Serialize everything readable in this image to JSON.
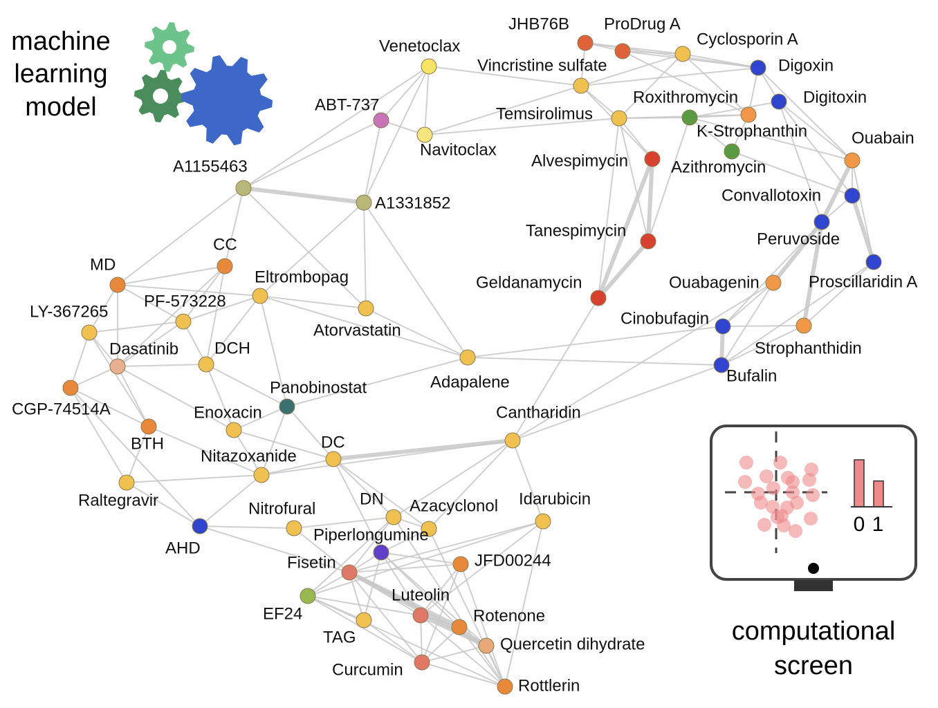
{
  "captions": {
    "ml_model": [
      "machine",
      "learning",
      "model"
    ],
    "screen": [
      "computational",
      "screen"
    ]
  },
  "screen_icon": {
    "bar_labels": [
      "0",
      "1"
    ],
    "bar_values": [
      1.0,
      0.55
    ],
    "color": "#ef8a8a"
  },
  "gear_colors": [
    "#6cc48a",
    "#4a8c5c",
    "#3d68c8"
  ],
  "edge_color": "#c8c8c8",
  "nodes": [
    {
      "name": "Venetoclax",
      "color": "#f7e463"
    },
    {
      "name": "ABT-737",
      "color": "#c974b8"
    },
    {
      "name": "Navitoclax",
      "color": "#f6e47e"
    },
    {
      "name": "A1155463",
      "color": "#b8b878"
    },
    {
      "name": "A1331852",
      "color": "#b8b878"
    },
    {
      "name": "JHB76B",
      "color": "#e0623a"
    },
    {
      "name": "ProDrug A",
      "color": "#e0623a"
    },
    {
      "name": "Cyclosporin A",
      "color": "#f0c050"
    },
    {
      "name": "Digoxin",
      "color": "#2f45d0"
    },
    {
      "name": "Vincristine sulfate",
      "color": "#f0c050"
    },
    {
      "name": "Roxithromycin",
      "color": "#f09848"
    },
    {
      "name": "Digitoxin",
      "color": "#2f45d0"
    },
    {
      "name": "Temsirolimus",
      "color": "#f0c050"
    },
    {
      "name": "K-Strophanthin",
      "color": "#5a9a40"
    },
    {
      "name": "Azithromycin",
      "color": "#5a9a40"
    },
    {
      "name": "Ouabain",
      "color": "#f09848"
    },
    {
      "name": "Alvespimycin",
      "color": "#d84030"
    },
    {
      "name": "Convallotoxin",
      "color": "#2f45d0"
    },
    {
      "name": "Peruvoside",
      "color": "#2f45d0"
    },
    {
      "name": "Tanespimycin",
      "color": "#d84030"
    },
    {
      "name": "Proscillaridin A",
      "color": "#2f45d0"
    },
    {
      "name": "Ouabagenin",
      "color": "#f09848"
    },
    {
      "name": "Geldanamycin",
      "color": "#d84030"
    },
    {
      "name": "Cinobufagin",
      "color": "#2f45d0"
    },
    {
      "name": "Strophanthidin",
      "color": "#f09848"
    },
    {
      "name": "Bufalin",
      "color": "#2f45d0"
    },
    {
      "name": "MD",
      "color": "#e8883a"
    },
    {
      "name": "CC",
      "color": "#e8883a"
    },
    {
      "name": "Eltrombopag",
      "color": "#f0c050"
    },
    {
      "name": "Atorvastatin",
      "color": "#f0c050"
    },
    {
      "name": "LY-367265",
      "color": "#f0c050"
    },
    {
      "name": "PF-573228",
      "color": "#f0c050"
    },
    {
      "name": "Dasatinib",
      "color": "#e8b090"
    },
    {
      "name": "DCH",
      "color": "#f0c050"
    },
    {
      "name": "Adapalene",
      "color": "#f0c050"
    },
    {
      "name": "CGP-74514A",
      "color": "#e8883a"
    },
    {
      "name": "Panobinostat",
      "color": "#3a7070"
    },
    {
      "name": "Enoxacin",
      "color": "#f0c050"
    },
    {
      "name": "BTH",
      "color": "#e8883a"
    },
    {
      "name": "Cantharidin",
      "color": "#f0c050"
    },
    {
      "name": "DC",
      "color": "#f0c050"
    },
    {
      "name": "Nitazoxanide",
      "color": "#f0c050"
    },
    {
      "name": "Raltegravir",
      "color": "#f0c050"
    },
    {
      "name": "AHD",
      "color": "#2f45d0"
    },
    {
      "name": "Nitrofural",
      "color": "#f0c050"
    },
    {
      "name": "DN",
      "color": "#f0c050"
    },
    {
      "name": "Azacyclonol",
      "color": "#f0c050"
    },
    {
      "name": "Idarubicin",
      "color": "#f0c050"
    },
    {
      "name": "Piperlongumine",
      "color": "#6040c8"
    },
    {
      "name": "Fisetin",
      "color": "#e07868"
    },
    {
      "name": "JFD00244",
      "color": "#e8883a"
    },
    {
      "name": "EF24",
      "color": "#98b850"
    },
    {
      "name": "Luteolin",
      "color": "#e07868"
    },
    {
      "name": "TAG",
      "color": "#f0c050"
    },
    {
      "name": "Rotenone",
      "color": "#e8883a"
    },
    {
      "name": "Quercetin dihydrate",
      "color": "#e8a878"
    },
    {
      "name": "Curcumin",
      "color": "#e07868"
    },
    {
      "name": "Rottlerin",
      "color": "#e8883a"
    }
  ],
  "edges": [
    [
      "Venetoclax",
      "ABT-737"
    ],
    [
      "Venetoclax",
      "Navitoclax"
    ],
    [
      "ABT-737",
      "Navitoclax"
    ],
    [
      "Venetoclax",
      "Vincristine sulfate"
    ],
    [
      "Venetoclax",
      "A1331852"
    ],
    [
      "Venetoclax",
      "A1155463"
    ],
    [
      "ABT-737",
      "A1155463"
    ],
    [
      "ABT-737",
      "A1331852"
    ],
    [
      "Navitoclax",
      "Temsirolimus"
    ],
    [
      "Navitoclax",
      "Cyclosporin A"
    ],
    [
      "A1155463",
      "A1331852"
    ],
    [
      "A1155463",
      "MD"
    ],
    [
      "A1155463",
      "CC"
    ],
    [
      "A1155463",
      "Atorvastatin"
    ],
    [
      "A1331852",
      "Atorvastatin"
    ],
    [
      "A1331852",
      "Adapalene"
    ],
    [
      "A1331852",
      "Eltrombopag"
    ],
    [
      "JHB76B",
      "ProDrug A"
    ],
    [
      "JHB76B",
      "Cyclosporin A"
    ],
    [
      "JHB76B",
      "Digoxin"
    ],
    [
      "ProDrug A",
      "Digoxin"
    ],
    [
      "ProDrug A",
      "Cyclosporin A"
    ],
    [
      "JHB76B",
      "Vincristine sulfate"
    ],
    [
      "ProDrug A",
      "Roxithromycin"
    ],
    [
      "Cyclosporin A",
      "Digoxin"
    ],
    [
      "Cyclosporin A",
      "Temsirolimus"
    ],
    [
      "Cyclosporin A",
      "Roxithromycin"
    ],
    [
      "Vincristine sulfate",
      "Temsirolimus"
    ],
    [
      "Vincristine sulfate",
      "Digoxin"
    ],
    [
      "Temsirolimus",
      "Roxithromycin"
    ],
    [
      "Temsirolimus",
      "K-Strophanthin"
    ],
    [
      "Temsirolimus",
      "Alvespimycin"
    ],
    [
      "Digoxin",
      "Digitoxin"
    ],
    [
      "Digoxin",
      "Ouabain"
    ],
    [
      "Digoxin",
      "Roxithromycin"
    ],
    [
      "Digitoxin",
      "Ouabain"
    ],
    [
      "Digitoxin",
      "K-Strophanthin"
    ],
    [
      "Digitoxin",
      "Convallotoxin"
    ],
    [
      "Roxithromycin",
      "K-Strophanthin"
    ],
    [
      "K-Strophanthin",
      "Azithromycin"
    ],
    [
      "Roxithromycin",
      "Azithromycin"
    ],
    [
      "Ouabain",
      "Convallotoxin"
    ],
    [
      "Ouabain",
      "Peruvoside"
    ],
    [
      "Ouabain",
      "Proscillaridin A"
    ],
    [
      "Convallotoxin",
      "Peruvoside"
    ],
    [
      "Convallotoxin",
      "Proscillaridin A"
    ],
    [
      "Peruvoside",
      "Ouabagenin"
    ],
    [
      "Peruvoside",
      "Strophanthidin"
    ],
    [
      "Peruvoside",
      "Cinobufagin"
    ],
    [
      "Proscillaridin A",
      "Strophanthidin"
    ],
    [
      "Proscillaridin A",
      "Bufalin"
    ],
    [
      "Ouabagenin",
      "Cinobufagin"
    ],
    [
      "Ouabagenin",
      "Bufalin"
    ],
    [
      "Strophanthidin",
      "Cinobufagin"
    ],
    [
      "Strophanthidin",
      "Bufalin"
    ],
    [
      "Cinobufagin",
      "Bufalin"
    ],
    [
      "Azithromycin",
      "Convallotoxin"
    ],
    [
      "K-Strophanthin",
      "Ouabain"
    ],
    [
      "Digitoxin",
      "Peruvoside"
    ],
    [
      "Alvespimycin",
      "Tanespimycin"
    ],
    [
      "Alvespimycin",
      "Geldanamycin"
    ],
    [
      "Tanespimycin",
      "Geldanamycin"
    ],
    [
      "Alvespimycin",
      "Vincristine sulfate"
    ],
    [
      "Tanespimycin",
      "Temsirolimus"
    ],
    [
      "Geldanamycin",
      "Temsirolimus"
    ],
    [
      "Geldanamycin",
      "Cantharidin"
    ],
    [
      "Tanespimycin",
      "K-Strophanthin"
    ],
    [
      "Adapalene",
      "Bufalin"
    ],
    [
      "Adapalene",
      "Cinobufagin"
    ],
    [
      "Adapalene",
      "Atorvastatin"
    ],
    [
      "Adapalene",
      "Eltrombopag"
    ],
    [
      "Cantharidin",
      "Bufalin"
    ],
    [
      "Cantharidin",
      "Ouabagenin"
    ],
    [
      "MD",
      "CC"
    ],
    [
      "MD",
      "LY-367265"
    ],
    [
      "MD",
      "PF-573228"
    ],
    [
      "MD",
      "Eltrombopag"
    ],
    [
      "MD",
      "Dasatinib"
    ],
    [
      "CC",
      "PF-573228"
    ],
    [
      "CC",
      "DCH"
    ],
    [
      "CC",
      "Dasatinib"
    ],
    [
      "Eltrombopag",
      "PF-573228"
    ],
    [
      "Eltrombopag",
      "Atorvastatin"
    ],
    [
      "Eltrombopag",
      "DCH"
    ],
    [
      "Eltrombopag",
      "Panobinostat"
    ],
    [
      "LY-367265",
      "Dasatinib"
    ],
    [
      "LY-367265",
      "CGP-74514A"
    ],
    [
      "LY-367265",
      "PF-573228"
    ],
    [
      "LY-367265",
      "BTH"
    ],
    [
      "PF-573228",
      "Dasatinib"
    ],
    [
      "PF-573228",
      "DCH"
    ],
    [
      "Dasatinib",
      "CGP-74514A"
    ],
    [
      "Dasatinib",
      "BTH"
    ],
    [
      "Dasatinib",
      "DCH"
    ],
    [
      "Dasatinib",
      "Enoxacin"
    ],
    [
      "DCH",
      "Enoxacin"
    ],
    [
      "DCH",
      "Panobinostat"
    ],
    [
      "CGP-74514A",
      "BTH"
    ],
    [
      "CGP-74514A",
      "Raltegravir"
    ],
    [
      "CGP-74514A",
      "AHD"
    ],
    [
      "BTH",
      "Raltegravir"
    ],
    [
      "BTH",
      "Nitazoxanide"
    ],
    [
      "Enoxacin",
      "Nitazoxanide"
    ],
    [
      "Enoxacin",
      "DC"
    ],
    [
      "Enoxacin",
      "Panobinostat"
    ],
    [
      "Panobinostat",
      "DC"
    ],
    [
      "Panobinostat",
      "Nitazoxanide"
    ],
    [
      "Panobinostat",
      "Adapalene"
    ],
    [
      "Nitazoxanide",
      "DC"
    ],
    [
      "Nitazoxanide",
      "Raltegravir"
    ],
    [
      "Nitazoxanide",
      "AHD"
    ],
    [
      "Nitazoxanide",
      "Cantharidin"
    ],
    [
      "DC",
      "Cantharidin"
    ],
    [
      "DC",
      "DN"
    ],
    [
      "DC",
      "Azacyclonol"
    ],
    [
      "DC",
      "Piperlongumine"
    ],
    [
      "Raltegravir",
      "AHD"
    ],
    [
      "AHD",
      "Nitrofural"
    ],
    [
      "AHD",
      "Fisetin"
    ],
    [
      "Nitrofural",
      "DN"
    ],
    [
      "Nitrofural",
      "Fisetin"
    ],
    [
      "DN",
      "Azacyclonol"
    ],
    [
      "DN",
      "Cantharidin"
    ],
    [
      "Azacyclonol",
      "Cantharidin"
    ],
    [
      "Azacyclonol",
      "Piperlongumine"
    ],
    [
      "Idarubicin",
      "Rottlerin"
    ],
    [
      "Idarubicin",
      "Fisetin"
    ],
    [
      "Idarubicin",
      "Luteolin"
    ],
    [
      "Idarubicin",
      "EF24"
    ],
    [
      "Idarubicin",
      "Cantharidin"
    ],
    [
      "Piperlongumine",
      "Fisetin"
    ],
    [
      "Piperlongumine",
      "Luteolin"
    ],
    [
      "Piperlongumine",
      "JFD00244"
    ],
    [
      "Piperlongumine",
      "Rotenone"
    ],
    [
      "Piperlongumine",
      "Quercetin dihydrate"
    ],
    [
      "Fisetin",
      "EF24"
    ],
    [
      "Fisetin",
      "Luteolin"
    ],
    [
      "Fisetin",
      "Rotenone"
    ],
    [
      "Fisetin",
      "Quercetin dihydrate"
    ],
    [
      "Fisetin",
      "Curcumin"
    ],
    [
      "Fisetin",
      "TAG"
    ],
    [
      "Fisetin",
      "DN"
    ],
    [
      "Fisetin",
      "JFD00244"
    ],
    [
      "EF24",
      "Luteolin"
    ],
    [
      "EF24",
      "Curcumin"
    ],
    [
      "EF24",
      "TAG"
    ],
    [
      "EF24",
      "Rottlerin"
    ],
    [
      "EF24",
      "DN"
    ],
    [
      "Luteolin",
      "Rotenone"
    ],
    [
      "Luteolin",
      "Quercetin dihydrate"
    ],
    [
      "Luteolin",
      "Curcumin"
    ],
    [
      "Luteolin",
      "Rottlerin"
    ],
    [
      "TAG",
      "Curcumin"
    ],
    [
      "TAG",
      "Piperlongumine"
    ],
    [
      "Rotenone",
      "Quercetin dihydrate"
    ],
    [
      "Rotenone",
      "Rottlerin"
    ],
    [
      "Rotenone",
      "Curcumin"
    ],
    [
      "Quercetin dihydrate",
      "Rottlerin"
    ],
    [
      "Quercetin dihydrate",
      "Curcumin"
    ],
    [
      "Curcumin",
      "Rottlerin"
    ],
    [
      "JFD00244",
      "Rottlerin"
    ],
    [
      "JFD00244",
      "Curcumin"
    ],
    [
      "JFD00244",
      "Luteolin"
    ],
    [
      "Azacyclonol",
      "Rottlerin"
    ],
    [
      "DN",
      "Rottlerin"
    ]
  ],
  "strong_edges": [
    [
      "A1155463",
      "A1331852"
    ],
    [
      "Alvespimycin",
      "Tanespimycin"
    ],
    [
      "Alvespimycin",
      "Geldanamycin"
    ],
    [
      "Tanespimycin",
      "Geldanamycin"
    ],
    [
      "Fisetin",
      "Rotenone"
    ],
    [
      "Fisetin",
      "Quercetin dihydrate"
    ],
    [
      "Luteolin",
      "Quercetin dihydrate"
    ],
    [
      "Peruvoside",
      "Ouabagenin"
    ],
    [
      "Peruvoside",
      "Strophanthidin"
    ],
    [
      "Convallotoxin",
      "Proscillaridin A"
    ],
    [
      "Ouabain",
      "Peruvoside"
    ],
    [
      "Cinobufagin",
      "Bufalin"
    ],
    [
      "Cantharidin",
      "DC"
    ]
  ]
}
